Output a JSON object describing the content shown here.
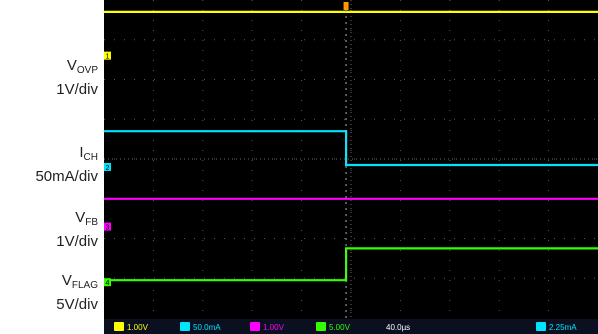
{
  "chart_data": {
    "type": "line",
    "title": "",
    "grid": true,
    "divisions": {
      "x": 10,
      "y": 8
    },
    "time_div_y": [
      0,
      8
    ],
    "trigger_time_fraction": 0.49,
    "channels": [
      {
        "id": 1,
        "name_main": "V",
        "name_sub": "OVP",
        "scale": "1V/div",
        "color": "#ffff00",
        "marker": "1",
        "marker_y_div": 6.6,
        "points_div": [
          [
            0,
            7.7
          ],
          [
            10,
            7.7
          ]
        ]
      },
      {
        "id": 2,
        "name_main": "I",
        "name_sub": "CH",
        "scale": "50mA/div",
        "color": "#00e5ff",
        "marker": "2",
        "marker_y_div": 3.8,
        "points_div": [
          [
            0,
            4.7
          ],
          [
            4.9,
            4.7
          ],
          [
            4.9,
            3.85
          ],
          [
            10,
            3.85
          ]
        ]
      },
      {
        "id": 3,
        "name_main": "V",
        "name_sub": "FB",
        "scale": "1V/div",
        "color": "#ff00ff",
        "marker": "3",
        "marker_y_div": 2.3,
        "points_div": [
          [
            0,
            3.0
          ],
          [
            10,
            3.0
          ]
        ]
      },
      {
        "id": 4,
        "name_main": "V",
        "name_sub": "FLAG",
        "scale": "5V/div",
        "color": "#33ff00",
        "marker": "4",
        "marker_y_div": 0.9,
        "points_div": [
          [
            0,
            0.95
          ],
          [
            4.9,
            0.95
          ],
          [
            4.9,
            1.75
          ],
          [
            10,
            1.75
          ]
        ]
      }
    ],
    "status_bar": [
      "1.00V",
      "50.0mA",
      "1.00V",
      "5.00V",
      "40.0µs",
      "2.25mA"
    ]
  },
  "status_colors": [
    "#ffff00",
    "#00e5ff",
    "#ff00ff",
    "#33ff00",
    "#ffffff",
    "#00e5ff"
  ]
}
